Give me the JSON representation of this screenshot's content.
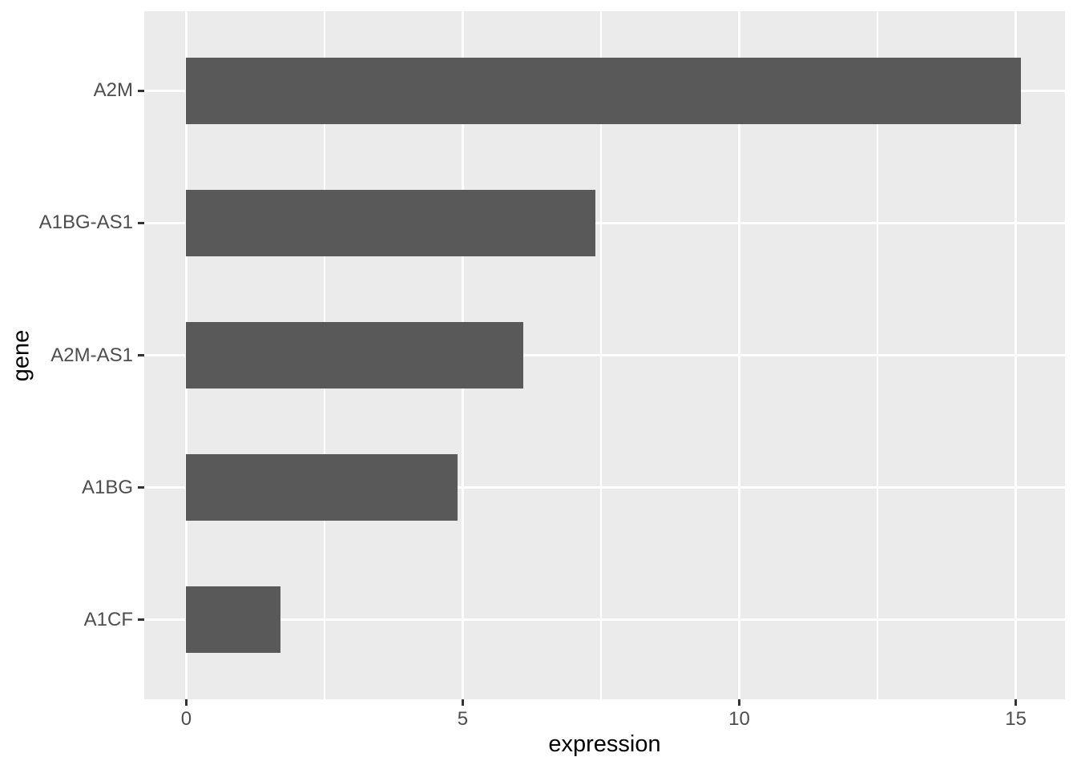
{
  "chart_data": {
    "type": "bar",
    "orientation": "horizontal",
    "title": "",
    "xlabel": "expression",
    "ylabel": "gene",
    "categories": [
      "A2M",
      "A1BG-AS1",
      "A2M-AS1",
      "A1BG",
      "A1CF"
    ],
    "values": [
      15.1,
      7.4,
      6.1,
      4.9,
      1.7
    ],
    "xlim": [
      -0.76,
      15.89
    ],
    "x_ticks": [
      0,
      5,
      10,
      15
    ],
    "x_tick_labels": [
      "0",
      "5",
      "10",
      "15"
    ],
    "x_minor_gridlines": [
      2.5,
      7.5,
      12.5
    ],
    "grid": true,
    "legend_position": "none",
    "colors": {
      "bar": "#595959",
      "panel_background": "#EBEBEB",
      "gridline": "#FFFFFF",
      "tick_label": "#4D4D4D",
      "axis_title": "#000000",
      "tick_mark": "#333333",
      "figure_background": "#FFFFFF"
    }
  }
}
